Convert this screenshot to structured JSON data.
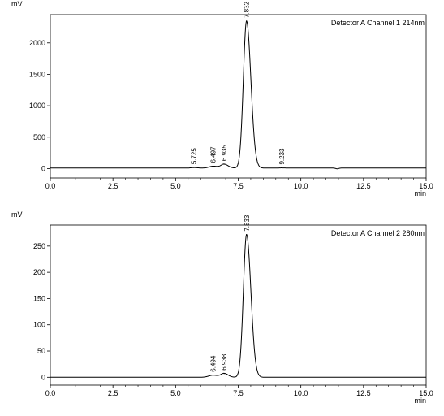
{
  "chart_data": [
    {
      "type": "line",
      "legend": "Detector A Channel 1 214nm",
      "ylabel": "mV",
      "xlabel": "min",
      "xlim": [
        0,
        15
      ],
      "ylim": [
        -150,
        2450
      ],
      "xticks": [
        "0.0",
        "2.5",
        "5.0",
        "7.5",
        "10.0",
        "12.5",
        "15.0"
      ],
      "yticks": [
        "0",
        "500",
        "1000",
        "1500",
        "2000"
      ],
      "grid": false,
      "baseline": 8,
      "peaks": [
        {
          "label": "5.725",
          "rt": 5.725,
          "height": 8,
          "width": 0.12
        },
        {
          "label": "6.497",
          "rt": 6.497,
          "height": 30,
          "width": 0.18
        },
        {
          "label": "6.935",
          "rt": 6.935,
          "height": 60,
          "width": 0.14
        },
        {
          "label": "7.832",
          "rt": 7.832,
          "height": 2340,
          "width": 0.15
        },
        {
          "label": "9.233",
          "rt": 9.233,
          "height": 3,
          "width": 0.1
        }
      ],
      "annotations": [
        "5.725",
        "6.497",
        "6.935",
        "7.832",
        "9.233"
      ]
    },
    {
      "type": "line",
      "legend": "Detector A Channel 2 280nm",
      "ylabel": "mV",
      "xlabel": "min",
      "xlim": [
        0,
        15
      ],
      "ylim": [
        -15,
        290
      ],
      "xticks": [
        "0.0",
        "2.5",
        "5.0",
        "7.5",
        "10.0",
        "12.5",
        "15.0"
      ],
      "yticks": [
        "0",
        "50",
        "100",
        "150",
        "200",
        "250"
      ],
      "grid": false,
      "baseline": 0,
      "peaks": [
        {
          "label": "6.494",
          "rt": 6.494,
          "height": 4,
          "width": 0.2
        },
        {
          "label": "6.938",
          "rt": 6.938,
          "height": 7,
          "width": 0.14
        },
        {
          "label": "7.833",
          "rt": 7.833,
          "height": 272,
          "width": 0.15
        }
      ],
      "annotations": [
        "6.494",
        "6.938",
        "7.833"
      ]
    }
  ]
}
